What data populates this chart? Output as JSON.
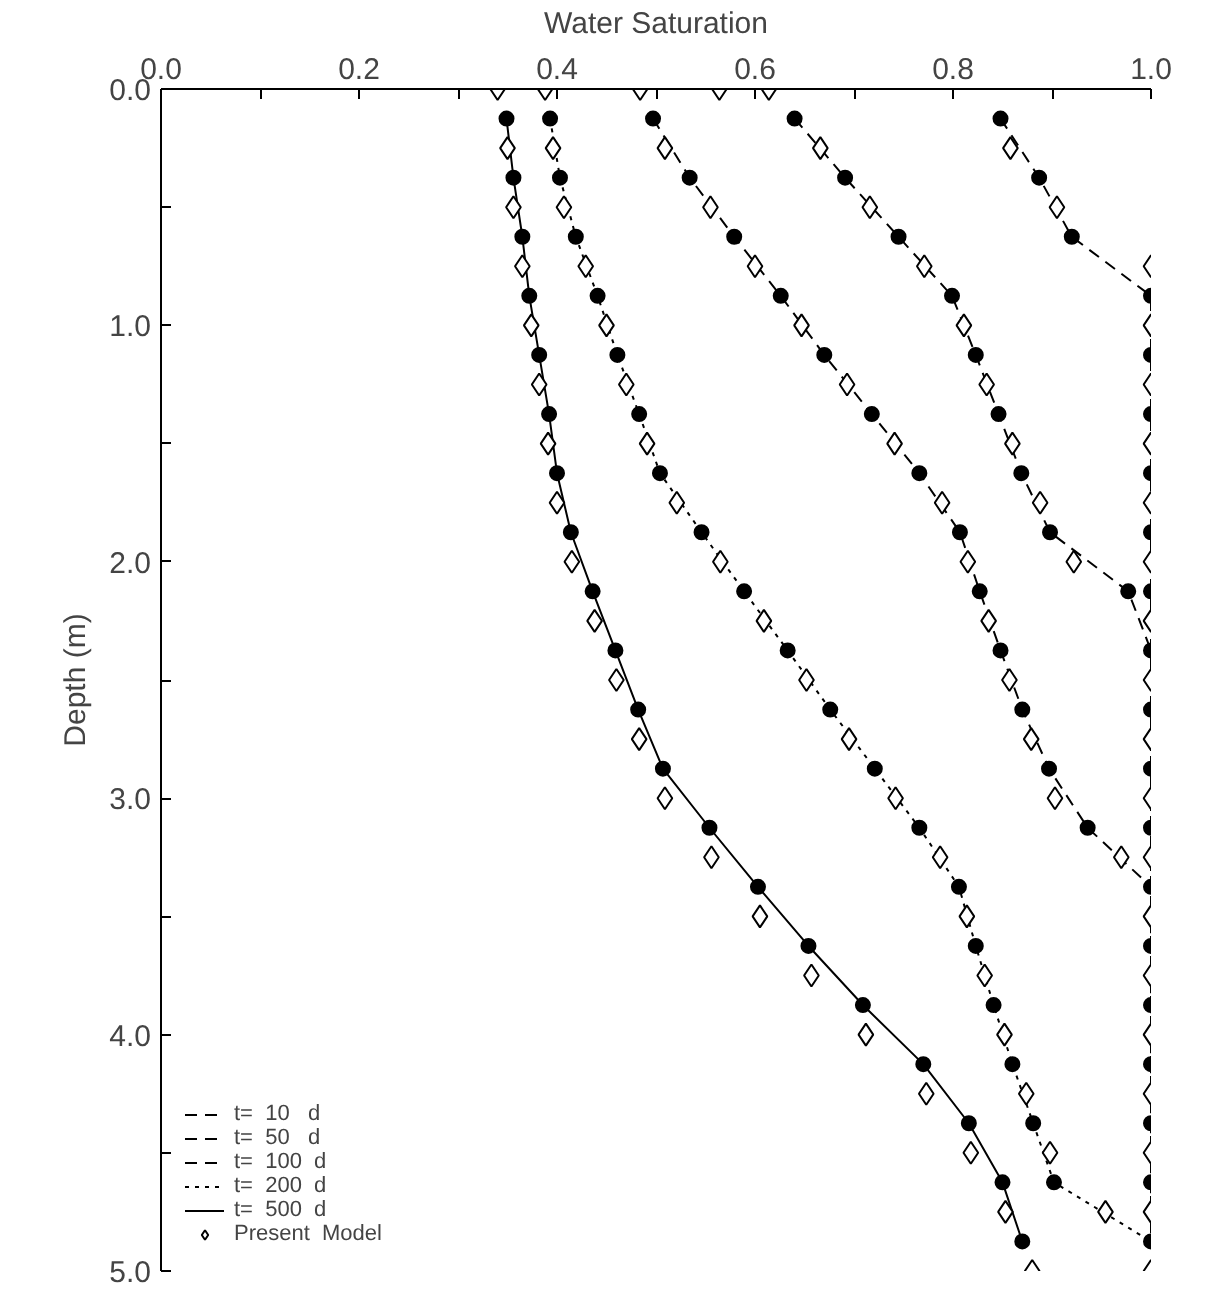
{
  "chart_data": {
    "type": "line",
    "xlabel": "Water Saturation",
    "ylabel": "Depth (m)",
    "xlim": [
      0,
      1
    ],
    "ylim": [
      5,
      0
    ],
    "xticks": [
      {
        "value": 0,
        "label": "0.0"
      },
      {
        "value": 0.1,
        "label": null
      },
      {
        "value": 0.2,
        "label": "0.2"
      },
      {
        "value": 0.3,
        "label": null
      },
      {
        "value": 0.4,
        "label": "0.4"
      },
      {
        "value": 0.5,
        "label": null
      },
      {
        "value": 0.6,
        "label": "0.6"
      },
      {
        "value": 0.7,
        "label": null
      },
      {
        "value": 0.8,
        "label": "0.8"
      },
      {
        "value": 0.9,
        "label": null
      },
      {
        "value": 1,
        "label": "1.0"
      }
    ],
    "yticks": [
      {
        "value": 0,
        "label": "0.0"
      },
      {
        "value": 0.5,
        "label": null
      },
      {
        "value": 1,
        "label": "1.0"
      },
      {
        "value": 1.5,
        "label": null
      },
      {
        "value": 2,
        "label": "2.0"
      },
      {
        "value": 2.5,
        "label": null
      },
      {
        "value": 3,
        "label": "3.0"
      },
      {
        "value": 3.5,
        "label": null
      },
      {
        "value": 4,
        "label": "4.0"
      },
      {
        "value": 4.5,
        "label": null
      },
      {
        "value": 5,
        "label": "5.0"
      }
    ],
    "grid": false,
    "legend": "bottom left",
    "series": [
      {
        "name": "t=  10   d",
        "line_style": "dashed",
        "color": "#000000",
        "x": [
          0.848,
          0.887,
          0.92,
          1.0,
          1.0,
          1.0,
          1.0,
          1.0,
          1.0,
          1.0,
          1.0,
          1.0,
          1.0,
          1.0,
          1.0,
          1.0,
          1.0,
          1.0,
          1.0,
          1.0
        ],
        "values": [
          0.125,
          0.375,
          0.625,
          0.875,
          1.125,
          1.375,
          1.625,
          1.875,
          2.125,
          2.375,
          2.625,
          2.875,
          3.125,
          3.375,
          3.625,
          3.875,
          4.125,
          4.375,
          4.625,
          4.875
        ]
      },
      {
        "name": "t=  50   d",
        "line_style": "dashed",
        "color": "#000000",
        "x": [
          0.64,
          0.691,
          0.745,
          0.799,
          0.823,
          0.846,
          0.869,
          0.898,
          0.977,
          1.0,
          1.0,
          1.0,
          1.0,
          1.0,
          1.0,
          1.0,
          1.0,
          1.0,
          1.0,
          1.0
        ],
        "values": [
          0.125,
          0.375,
          0.625,
          0.875,
          1.125,
          1.375,
          1.625,
          1.875,
          2.125,
          2.375,
          2.625,
          2.875,
          3.125,
          3.375,
          3.625,
          3.875,
          4.125,
          4.375,
          4.625,
          4.875
        ]
      },
      {
        "name": "t=  100  d",
        "line_style": "dashed",
        "color": "#000000",
        "x": [
          0.497,
          0.534,
          0.579,
          0.626,
          0.67,
          0.718,
          0.766,
          0.807,
          0.827,
          0.848,
          0.87,
          0.897,
          0.936,
          1.0,
          1.0,
          1.0,
          1.0,
          1.0,
          1.0,
          1.0
        ],
        "values": [
          0.125,
          0.375,
          0.625,
          0.875,
          1.125,
          1.375,
          1.625,
          1.875,
          2.125,
          2.375,
          2.625,
          2.875,
          3.125,
          3.375,
          3.625,
          3.875,
          4.125,
          4.375,
          4.625,
          4.875
        ]
      },
      {
        "name": "t=  200  d",
        "line_style": "dotted",
        "color": "#000000",
        "x": [
          0.393,
          0.403,
          0.419,
          0.441,
          0.461,
          0.483,
          0.504,
          0.546,
          0.589,
          0.633,
          0.676,
          0.721,
          0.766,
          0.806,
          0.823,
          0.841,
          0.86,
          0.881,
          0.902,
          1.0
        ],
        "values": [
          0.125,
          0.375,
          0.625,
          0.875,
          1.125,
          1.375,
          1.625,
          1.875,
          2.125,
          2.375,
          2.625,
          2.875,
          3.125,
          3.375,
          3.625,
          3.875,
          4.125,
          4.375,
          4.625,
          4.875
        ]
      },
      {
        "name": "t=  500  d",
        "line_style": "solid",
        "color": "#000000",
        "x": [
          0.349,
          0.356,
          0.365,
          0.372,
          0.382,
          0.392,
          0.4,
          0.414,
          0.436,
          0.459,
          0.482,
          0.507,
          0.554,
          0.603,
          0.654,
          0.709,
          0.77,
          0.816,
          0.85,
          0.87
        ],
        "values": [
          0.125,
          0.375,
          0.625,
          0.875,
          1.125,
          1.375,
          1.625,
          1.875,
          2.125,
          2.375,
          2.625,
          2.875,
          3.125,
          3.375,
          3.625,
          3.875,
          4.125,
          4.375,
          4.625,
          4.875
        ]
      },
      {
        "name": "Present  Model",
        "type": "scatter",
        "marker": "diamond",
        "color": "#000000",
        "x": [
          0.614,
          0.858,
          0.905,
          1.0,
          1.0,
          1.0,
          1.0,
          1.0,
          1.0,
          1.0,
          1.0,
          1.0,
          1.0,
          1.0,
          1.0,
          1.0,
          1.0,
          1.0,
          1.0,
          1.0,
          1.0,
          0.564,
          0.666,
          0.716,
          0.771,
          0.811,
          0.834,
          0.86,
          0.888,
          0.922,
          0.484,
          0.509,
          0.555,
          0.6,
          0.647,
          0.693,
          0.741,
          0.789,
          0.815,
          0.836,
          0.857,
          0.879,
          0.903,
          0.97,
          0.388,
          0.396,
          0.407,
          0.429,
          0.45,
          0.47,
          0.491,
          0.521,
          0.565,
          0.609,
          0.652,
          0.695,
          0.742,
          0.787,
          0.814,
          0.832,
          0.852,
          0.874,
          0.898,
          0.954,
          0.34,
          0.35,
          0.356,
          0.365,
          0.374,
          0.382,
          0.391,
          0.4,
          0.415,
          0.438,
          0.46,
          0.483,
          0.509,
          0.556,
          0.605,
          0.657,
          0.712,
          0.773,
          0.818,
          0.853,
          0.88
        ],
        "values": [
          0,
          0.25,
          0.5,
          0.75,
          1,
          1.25,
          1.5,
          1.75,
          2,
          2.25,
          2.5,
          2.75,
          3,
          3.25,
          3.5,
          3.75,
          4,
          4.25,
          4.5,
          4.75,
          5,
          0,
          0.25,
          0.5,
          0.75,
          1,
          1.25,
          1.5,
          1.75,
          2,
          0,
          0.25,
          0.5,
          0.75,
          1,
          1.25,
          1.5,
          1.75,
          2,
          2.25,
          2.5,
          2.75,
          3,
          3.25,
          0,
          0.25,
          0.5,
          0.75,
          1,
          1.25,
          1.5,
          1.75,
          2,
          2.25,
          2.5,
          2.75,
          3,
          3.25,
          3.5,
          3.75,
          4,
          4.25,
          4.5,
          4.75,
          0,
          0.25,
          0.5,
          0.75,
          1,
          1.25,
          1.5,
          1.75,
          2,
          2.25,
          2.5,
          2.75,
          3,
          3.25,
          3.5,
          3.75,
          4,
          4.25,
          4.5,
          4.75,
          5
        ]
      },
      {
        "type": "scatter",
        "marker": "circle",
        "color": "#000000",
        "x": [
          0.848,
          0.887,
          0.92,
          1.0,
          1.0,
          1.0,
          1.0,
          1.0,
          1.0,
          1.0,
          1.0,
          1.0,
          1.0,
          1.0,
          1.0,
          1.0,
          1.0,
          1.0,
          1.0,
          1.0,
          0.64,
          0.691,
          0.745,
          0.799,
          0.823,
          0.846,
          0.869,
          0.898,
          0.977,
          0.497,
          0.534,
          0.579,
          0.626,
          0.67,
          0.718,
          0.766,
          0.807,
          0.827,
          0.848,
          0.87,
          0.897,
          0.936,
          0.393,
          0.403,
          0.419,
          0.441,
          0.461,
          0.483,
          0.504,
          0.546,
          0.589,
          0.633,
          0.676,
          0.721,
          0.766,
          0.806,
          0.823,
          0.841,
          0.86,
          0.881,
          0.902,
          0.349,
          0.356,
          0.365,
          0.372,
          0.382,
          0.392,
          0.4,
          0.414,
          0.436,
          0.459,
          0.482,
          0.507,
          0.554,
          0.603,
          0.654,
          0.709,
          0.77,
          0.816,
          0.85,
          0.87
        ],
        "values": [
          0.125,
          0.375,
          0.625,
          0.875,
          1.125,
          1.375,
          1.625,
          1.875,
          2.125,
          2.375,
          2.625,
          2.875,
          3.125,
          3.375,
          3.625,
          3.875,
          4.125,
          4.375,
          4.625,
          4.875,
          0.125,
          0.375,
          0.625,
          0.875,
          1.125,
          1.375,
          1.625,
          1.875,
          2.125,
          0.125,
          0.375,
          0.625,
          0.875,
          1.125,
          1.375,
          1.625,
          1.875,
          2.125,
          2.375,
          2.625,
          2.875,
          3.125,
          0.125,
          0.375,
          0.625,
          0.875,
          1.125,
          1.375,
          1.625,
          1.875,
          2.125,
          2.375,
          2.625,
          2.875,
          3.125,
          3.375,
          3.625,
          3.875,
          4.125,
          4.375,
          4.625,
          0.125,
          0.375,
          0.625,
          0.875,
          1.125,
          1.375,
          1.625,
          1.875,
          2.125,
          2.375,
          2.625,
          2.875,
          3.125,
          3.375,
          3.625,
          3.875,
          4.125,
          4.375,
          4.625,
          4.875
        ]
      }
    ]
  }
}
